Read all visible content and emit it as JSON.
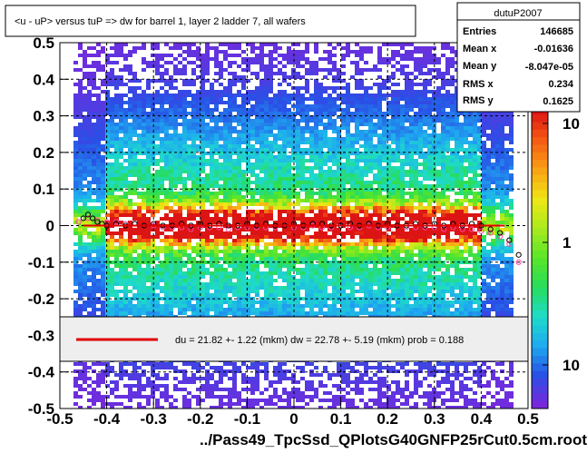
{
  "title": "<u - uP>       versus  tuP =>  dw for barrel 1, layer 2 ladder 7, all wafers",
  "xlabel": "../Pass49_TpcSsd_QPlotsG40GNFP25rCut0.5cm.root",
  "stats": {
    "name": "dutuP2007",
    "rows": [
      {
        "label": "Entries",
        "value": "146685"
      },
      {
        "label": "Mean x",
        "value": "-0.01636"
      },
      {
        "label": "Mean y",
        "value": "-8.047e-05"
      },
      {
        "label": "RMS x",
        "value": "0.234"
      },
      {
        "label": "RMS y",
        "value": "0.1625"
      }
    ]
  },
  "fit_text": "du =   21.82 +-  1.22 (mkm) dw =   22.78 +-  5.19 (mkm) prob = 0.188",
  "colorbar_labels": [
    "10",
    "1",
    "10"
  ],
  "colors": {
    "fit_line": "#e00000",
    "profile_black": "#000000",
    "profile_magenta": "#ff44aa"
  },
  "chart_data": {
    "type": "heatmap",
    "xlim": [
      -0.5,
      0.5
    ],
    "ylim": [
      -0.5,
      0.5
    ],
    "x_ticks": [
      "-0.5",
      "-0.4",
      "-0.3",
      "-0.2",
      "-0.1",
      "0",
      "0.1",
      "0.2",
      "0.3",
      "0.4",
      "0.5"
    ],
    "y_ticks": [
      "-0.5",
      "-0.4",
      "-0.3",
      "-0.2",
      "-0.1",
      "0",
      "0.1",
      "0.2",
      "0.3",
      "0.4",
      "0.5"
    ],
    "fit_line": {
      "x": [
        -0.45,
        0.45
      ],
      "y": [
        0.0,
        0.0
      ]
    },
    "profile_black": {
      "x": [
        -0.45,
        -0.44,
        -0.43,
        -0.42,
        -0.41,
        -0.4,
        -0.38,
        -0.36,
        -0.34,
        -0.32,
        -0.3,
        -0.28,
        -0.26,
        -0.24,
        -0.22,
        -0.2,
        -0.18,
        -0.16,
        -0.14,
        -0.12,
        -0.1,
        -0.08,
        -0.06,
        -0.04,
        -0.02,
        0.0,
        0.02,
        0.04,
        0.06,
        0.08,
        0.1,
        0.12,
        0.14,
        0.16,
        0.18,
        0.2,
        0.22,
        0.24,
        0.26,
        0.28,
        0.3,
        0.32,
        0.34,
        0.36,
        0.38,
        0.4,
        0.42,
        0.44,
        0.46,
        0.48
      ],
      "y": [
        0.02,
        0.03,
        0.02,
        0.01,
        0.005,
        0.0,
        0.005,
        0.0,
        0.005,
        0.0,
        0.005,
        0.0,
        0.0,
        0.005,
        0.0,
        0.005,
        0.0,
        0.005,
        0.0,
        0.0,
        0.005,
        0.0,
        0.005,
        0.0,
        0.0,
        0.005,
        0.0,
        0.005,
        0.005,
        0.0,
        0.0,
        0.005,
        0.0,
        0.005,
        0.0,
        0.005,
        0.0,
        0.0,
        0.005,
        0.0,
        0.005,
        0.0,
        0.005,
        0.0,
        0.005,
        0.0,
        -0.01,
        -0.02,
        -0.04,
        -0.08
      ]
    },
    "profile_magenta": {
      "x": [
        -0.46,
        -0.44,
        -0.42,
        -0.4,
        -0.38,
        -0.36,
        -0.34,
        -0.32,
        -0.3,
        -0.28,
        -0.26,
        -0.24,
        -0.22,
        -0.2,
        -0.18,
        -0.16,
        -0.14,
        -0.12,
        -0.1,
        -0.08,
        -0.06,
        -0.04,
        -0.02,
        0.0,
        0.02,
        0.04,
        0.06,
        0.08,
        0.1,
        0.12,
        0.14,
        0.16,
        0.18,
        0.2,
        0.22,
        0.24,
        0.26,
        0.28,
        0.3,
        0.32,
        0.34,
        0.36,
        0.38,
        0.4,
        0.42,
        0.44,
        0.46,
        0.48
      ],
      "y": [
        0.01,
        0.02,
        0.015,
        0.01,
        0.01,
        0.005,
        0.005,
        0.0,
        0.0,
        -0.005,
        -0.005,
        -0.005,
        -0.01,
        -0.005,
        -0.005,
        -0.005,
        -0.01,
        -0.005,
        -0.005,
        -0.005,
        -0.005,
        -0.005,
        0.0,
        -0.005,
        -0.005,
        0.0,
        -0.005,
        -0.005,
        0.0,
        -0.005,
        -0.005,
        0.0,
        -0.005,
        -0.005,
        0.0,
        -0.005,
        -0.005,
        -0.005,
        -0.005,
        -0.01,
        -0.005,
        -0.01,
        -0.01,
        -0.015,
        -0.02,
        -0.03,
        -0.05,
        -0.1
      ]
    }
  }
}
